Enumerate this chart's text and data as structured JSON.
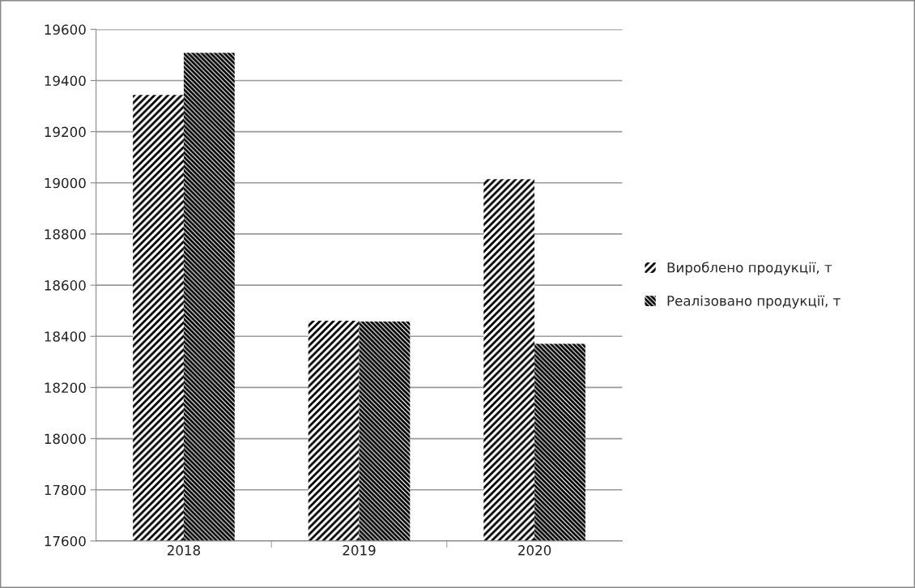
{
  "chart_data": {
    "type": "bar",
    "categories": [
      "2018",
      "2019",
      "2020"
    ],
    "series": [
      {
        "name": "Вироблено продукції, т",
        "color": "#ffffff",
        "values": [
          19344,
          18461,
          19014
        ]
      },
      {
        "name": "Реалізовано продукції, т",
        "color": "#ffffff",
        "values": [
          19508,
          18458,
          18371
        ]
      }
    ],
    "ylim": [
      17600,
      19600
    ],
    "yticks": [
      17600,
      17800,
      18000,
      18200,
      18400,
      18600,
      18800,
      19000,
      19200,
      19400,
      19600
    ],
    "grid": "y",
    "legend": "right"
  }
}
